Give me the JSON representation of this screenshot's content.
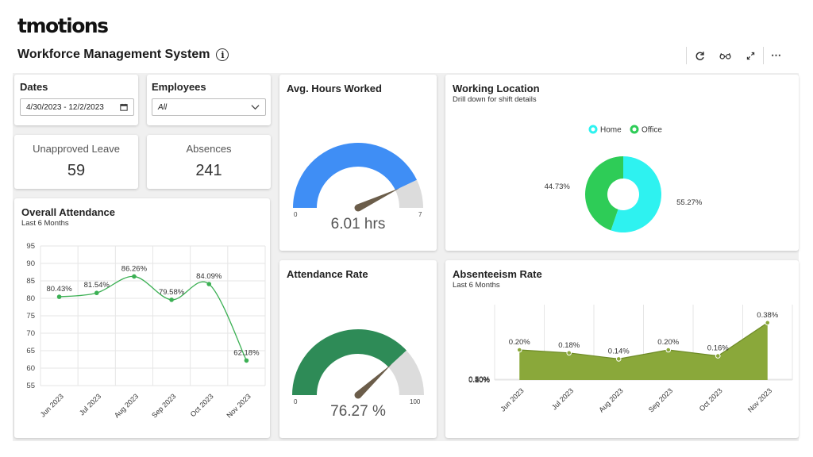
{
  "brand": {
    "logo_text": "tmotions"
  },
  "page": {
    "title": "Workforce Management System",
    "info_icon": "info-icon"
  },
  "toolbar": {
    "buttons": [
      "refresh-icon",
      "glasses-icon",
      "expand-icon",
      "more-icon"
    ]
  },
  "filters": {
    "dates": {
      "label": "Dates",
      "value": "4/30/2023 - 12/2/2023",
      "icon": "calendar-icon"
    },
    "employees": {
      "label": "Employees",
      "value": "All",
      "icon": "chevron-down-icon"
    }
  },
  "kpis": {
    "unapproved_leave": {
      "label": "Unapproved Leave",
      "value": "59"
    },
    "absences": {
      "label": "Absences",
      "value": "241"
    }
  },
  "avg_hours": {
    "title": "Avg. Hours Worked",
    "value_text": "6.01 hrs",
    "value": 6.01,
    "min": "0",
    "max": "7",
    "min_value": 0,
    "max_value": 7,
    "color": "#3f8ef5"
  },
  "attendance_rate": {
    "title": "Attendance Rate",
    "value_text": "76.27 %",
    "value": 76.27,
    "min": "0",
    "max": "100",
    "min_value": 0,
    "max_value": 100,
    "color": "#2e8b57"
  },
  "working_location": {
    "title": "Working Location",
    "subtitle": "Drill down for shift details"
  },
  "overall_attendance": {
    "title": "Overall Attendance",
    "subtitle": "Last 6 Months"
  },
  "absenteeism": {
    "title": "Absenteeism Rate",
    "subtitle": "Last 6 Months"
  },
  "chart_data": [
    {
      "id": "overall_attendance",
      "type": "line",
      "title": "Overall Attendance",
      "subtitle": "Last 6 Months",
      "categories": [
        "Jun 2023",
        "Jul 2023",
        "Aug 2023",
        "Sep 2023",
        "Oct 2023",
        "Nov 2023"
      ],
      "values": [
        80.43,
        81.54,
        86.26,
        79.58,
        84.09,
        62.18
      ],
      "data_labels": [
        "80.43%",
        "81.54%",
        "86.26%",
        "79.58%",
        "84.09%",
        "62.18%"
      ],
      "yticks": [
        "95",
        "90",
        "85",
        "80",
        "75",
        "70",
        "65",
        "60",
        "55"
      ],
      "ylim": [
        55,
        95
      ],
      "grid": true,
      "color": "#3cb054"
    },
    {
      "id": "working_location",
      "type": "pie",
      "donut": true,
      "title": "Working Location",
      "subtitle": "Drill down for shift details",
      "slices": [
        {
          "name": "Home",
          "value": 55.27,
          "label": "55.27%",
          "color": "#2ef2f0"
        },
        {
          "name": "Office",
          "value": 44.73,
          "label": "44.73%",
          "color": "#2ecc57"
        }
      ],
      "legend": "top"
    },
    {
      "id": "absenteeism_rate",
      "type": "area",
      "title": "Absenteeism Rate",
      "subtitle": "Last 6 Months",
      "categories": [
        "Jun 2023",
        "Jul 2023",
        "Aug 2023",
        "Sep 2023",
        "Oct 2023",
        "Nov 2023"
      ],
      "values": [
        0.2,
        0.18,
        0.14,
        0.2,
        0.16,
        0.38
      ],
      "data_labels": [
        "0.20%",
        "0.18%",
        "0.14%",
        "0.20%",
        "0.16%",
        "0.38%"
      ],
      "yticks": [
        "0.50%",
        "0.40%",
        "0.30%",
        "0.20%",
        "0.10%",
        "0%"
      ],
      "ylim": [
        0,
        0.5
      ],
      "grid": true,
      "color": "#8aa83a"
    }
  ]
}
